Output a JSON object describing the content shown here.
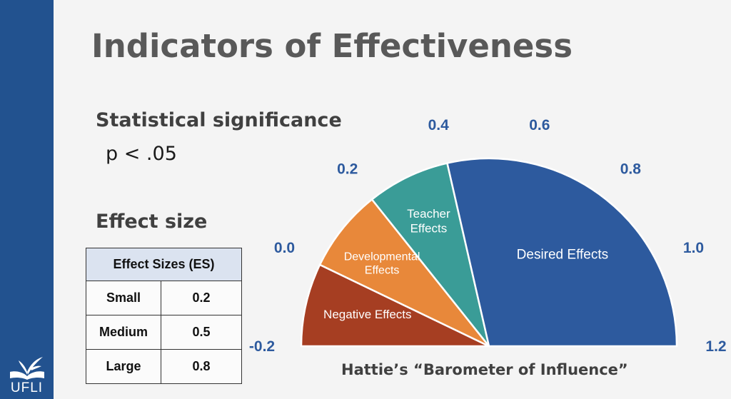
{
  "slide": {
    "title": "Indicators of Effectiveness",
    "significance": {
      "heading": "Statistical significance",
      "value": "p < .05"
    },
    "effect_size": {
      "heading": "Effect size"
    }
  },
  "table": {
    "header": "Effect Sizes (ES)",
    "rows": [
      {
        "label": "Small",
        "value": "0.2"
      },
      {
        "label": "Medium",
        "value": "0.5"
      },
      {
        "label": "Large",
        "value": "0.8"
      }
    ]
  },
  "chart_data": {
    "type": "gauge",
    "title": "Hattie’s “Barometer of Influence”",
    "range": [
      -0.2,
      1.2
    ],
    "ticks": [
      "-0.2",
      "0.0",
      "0.2",
      "0.4",
      "0.6",
      "0.8",
      "1.0",
      "1.2"
    ],
    "zones": [
      {
        "name_lines": [
          "Negative Effects"
        ],
        "from": -0.2,
        "to": 0.0,
        "color": "#a63e22"
      },
      {
        "name_lines": [
          "Developmental",
          "Effects"
        ],
        "from": 0.0,
        "to": 0.2,
        "color": "#e8883a"
      },
      {
        "name_lines": [
          "Teacher",
          "Effects"
        ],
        "from": 0.2,
        "to": 0.4,
        "color": "#3a9c97"
      },
      {
        "name_lines": [
          "Desired Effects"
        ],
        "from": 0.4,
        "to": 1.2,
        "color": "#2d5a9e"
      }
    ],
    "tick_color": "#2d5a9e"
  },
  "logo": {
    "text": "UFLI"
  }
}
